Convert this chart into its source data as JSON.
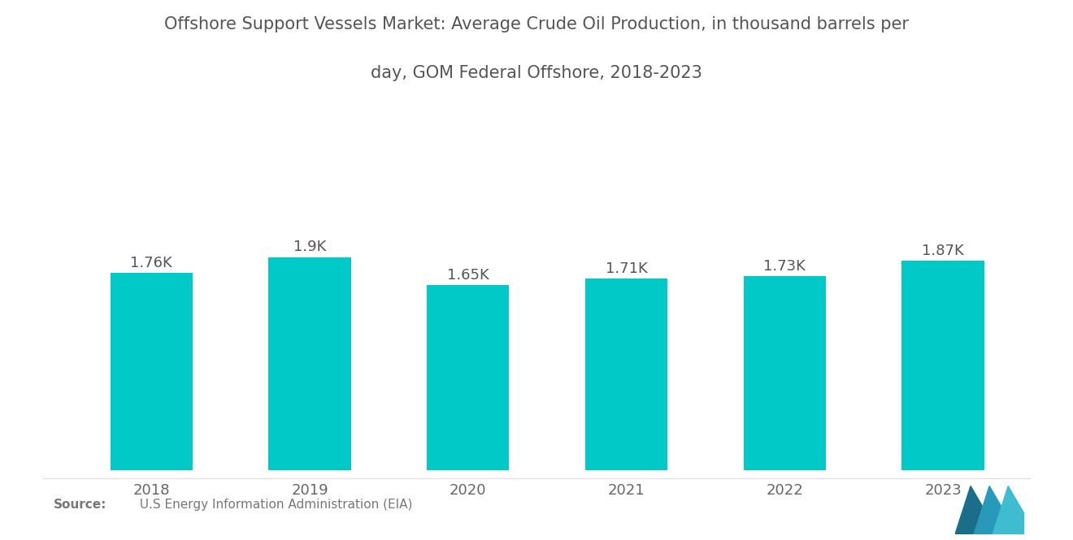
{
  "title_line1": "Offshore Support Vessels Market: Average Crude Oil Production, in thousand barrels per",
  "title_line2": "day, GOM Federal Offshore, 2018-2023",
  "categories": [
    "2018",
    "2019",
    "2020",
    "2021",
    "2022",
    "2023"
  ],
  "values": [
    1760,
    1900,
    1650,
    1710,
    1730,
    1870
  ],
  "labels": [
    "1.76K",
    "1.9K",
    "1.65K",
    "1.71K",
    "1.73K",
    "1.87K"
  ],
  "bar_color": "#00C9C8",
  "background_color": "#ffffff",
  "title_fontsize": 15,
  "label_fontsize": 13,
  "tick_fontsize": 13,
  "source_bold": "Source:",
  "source_normal": "  U.S Energy Information Administration (EIA)",
  "ylim": [
    0,
    2800
  ],
  "bar_width": 0.52,
  "logo_colors": [
    "#1a6e8a",
    "#2899b8",
    "#40bcd0"
  ]
}
